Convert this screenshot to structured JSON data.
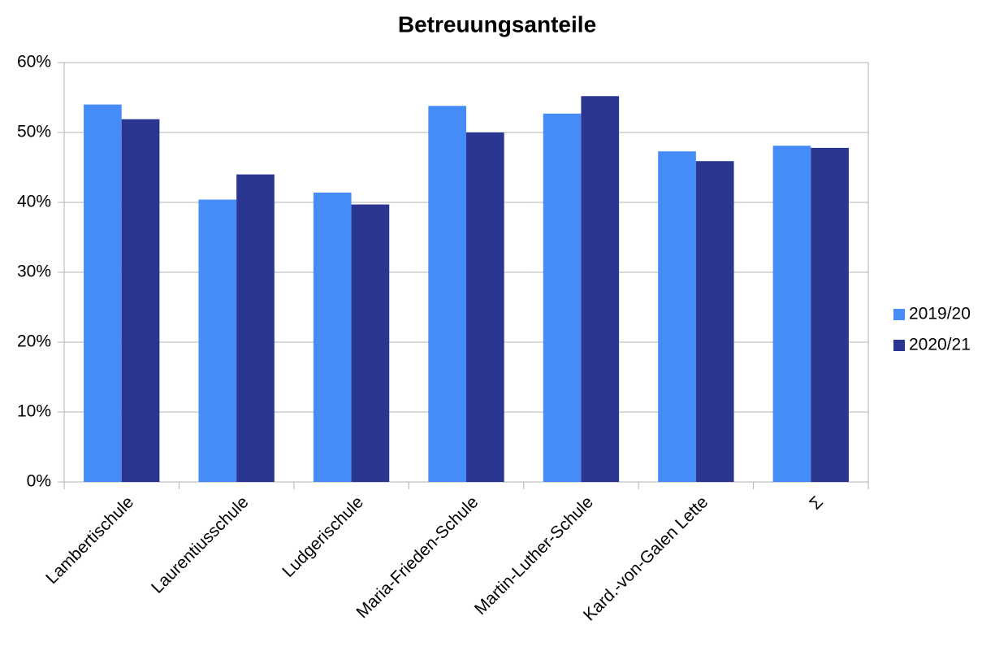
{
  "chart_data": {
    "type": "bar",
    "title": "Betreuungsanteile",
    "categories": [
      "Lambertischule",
      "Laurentiusschule",
      "Ludgerischule",
      "Maria-Frieden-Schule",
      "Martin-Luther-Schule",
      "Kard.-von-Galen Lette",
      "Σ"
    ],
    "series": [
      {
        "name": "2019/20",
        "color": "#468cf9",
        "values": [
          54.0,
          40.4,
          41.4,
          53.8,
          52.7,
          47.3,
          48.1
        ]
      },
      {
        "name": "2020/21",
        "color": "#2b3691",
        "values": [
          51.9,
          44.0,
          39.7,
          50.0,
          55.2,
          45.9,
          47.8
        ]
      }
    ],
    "ylim": [
      0,
      60
    ],
    "yticks": [
      {
        "value": 0,
        "label": "0%"
      },
      {
        "value": 10,
        "label": "10%"
      },
      {
        "value": 20,
        "label": "20%"
      },
      {
        "value": 30,
        "label": "30%"
      },
      {
        "value": 40,
        "label": "40%"
      },
      {
        "value": 50,
        "label": "50%"
      },
      {
        "value": 60,
        "label": "60%"
      }
    ],
    "grid": true,
    "legend": "right"
  }
}
